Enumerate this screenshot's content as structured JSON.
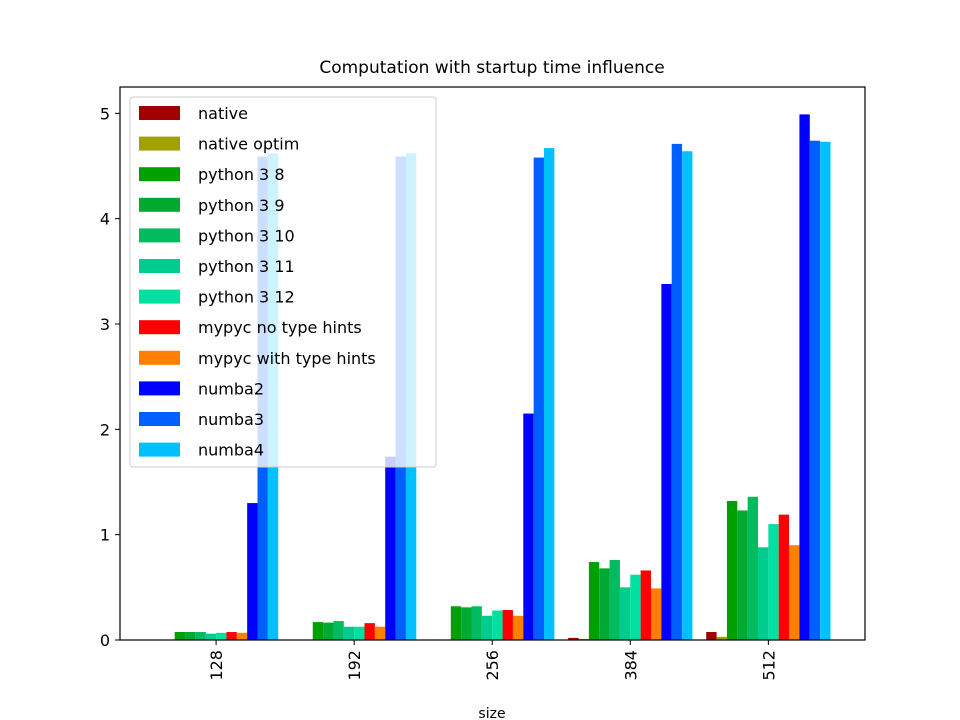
{
  "chart_data": {
    "type": "bar",
    "title": "Computation with startup time influence",
    "xlabel": "size",
    "ylabel": "",
    "categories": [
      "128",
      "192",
      "256",
      "384",
      "512"
    ],
    "ylim": [
      0,
      5.25
    ],
    "yticks": [
      0,
      1,
      2,
      3,
      4,
      5
    ],
    "grid": false,
    "legend_position": "top-left",
    "series": [
      {
        "name": "native",
        "color": "#a00000",
        "values": [
          0.003,
          0.003,
          0.005,
          0.02,
          0.076
        ]
      },
      {
        "name": "native optim",
        "color": "#a0a000",
        "values": [
          0.002,
          0.002,
          0.003,
          0.01,
          0.03
        ]
      },
      {
        "name": "python 3 8",
        "color": "#00a000",
        "values": [
          0.076,
          0.17,
          0.32,
          0.74,
          1.32
        ]
      },
      {
        "name": "python 3 9",
        "color": "#00aa30",
        "values": [
          0.076,
          0.165,
          0.31,
          0.68,
          1.23
        ]
      },
      {
        "name": "python 3 10",
        "color": "#00bb60",
        "values": [
          0.076,
          0.18,
          0.32,
          0.76,
          1.36
        ]
      },
      {
        "name": "python 3 11",
        "color": "#00cc90",
        "values": [
          0.06,
          0.126,
          0.23,
          0.5,
          0.88
        ]
      },
      {
        "name": "python 3 12",
        "color": "#00e0a0",
        "values": [
          0.068,
          0.126,
          0.28,
          0.62,
          1.1
        ]
      },
      {
        "name": "mypyc no type hints",
        "color": "#ff0000",
        "values": [
          0.076,
          0.16,
          0.285,
          0.66,
          1.19
        ]
      },
      {
        "name": "mypyc with type hints",
        "color": "#ff8000",
        "values": [
          0.068,
          0.126,
          0.23,
          0.49,
          0.9
        ]
      },
      {
        "name": "numba2",
        "color": "#0000ff",
        "values": [
          1.3,
          1.74,
          2.15,
          3.38,
          4.99
        ]
      },
      {
        "name": "numba3",
        "color": "#0060ff",
        "values": [
          4.59,
          4.59,
          4.58,
          4.71,
          4.74
        ]
      },
      {
        "name": "numba4",
        "color": "#00c0ff",
        "values": [
          4.62,
          4.62,
          4.67,
          4.64,
          4.73
        ]
      }
    ]
  }
}
